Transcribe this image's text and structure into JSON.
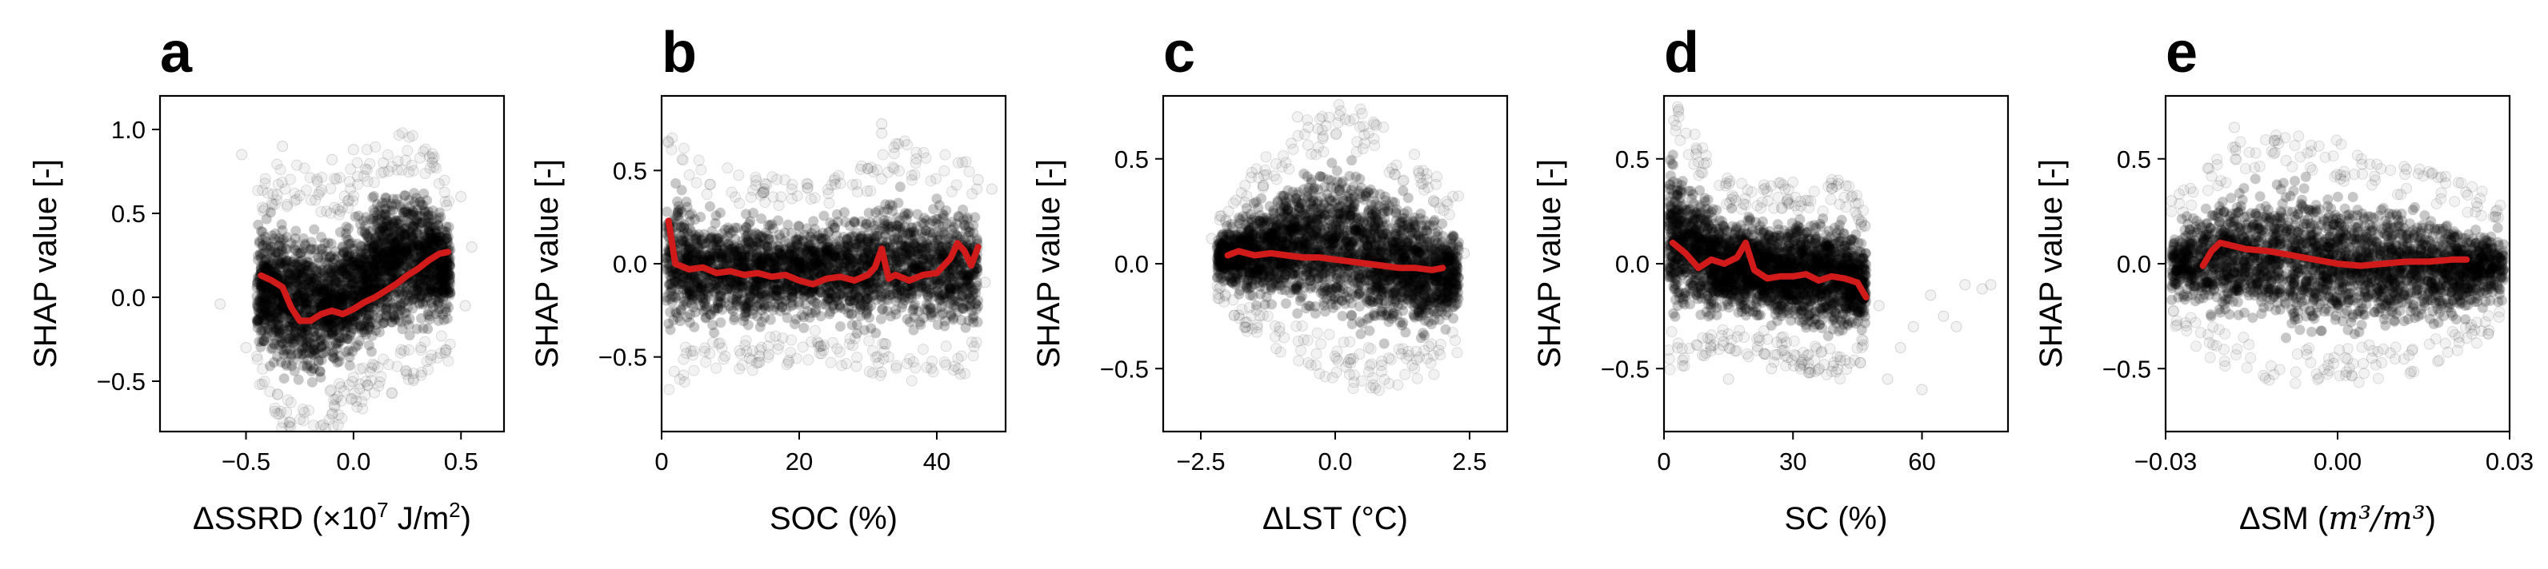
{
  "chart_data": [
    {
      "panel_label": "a",
      "type": "scatter",
      "xlabel": "ΔSSRD (×10",
      "xlabel_sup": "7",
      "xlabel_tail": " J/m",
      "xlabel_sup2": "2",
      "xlabel_end": ")",
      "ylabel": "SHAP value [-]",
      "xlim": [
        -0.9,
        0.7
      ],
      "ylim": [
        -0.8,
        1.2
      ],
      "xticks": [
        -0.5,
        0.0,
        0.5
      ],
      "xtick_labels": [
        "−0.5",
        "0.0",
        "0.5"
      ],
      "yticks": [
        -0.5,
        0.0,
        0.5,
        1.0
      ],
      "ytick_labels": [
        "−0.5",
        "0.0",
        "0.5",
        "1.0"
      ],
      "trend": [
        [
          -0.43,
          0.13
        ],
        [
          -0.38,
          0.1
        ],
        [
          -0.33,
          0.06
        ],
        [
          -0.29,
          -0.06
        ],
        [
          -0.25,
          -0.14
        ],
        [
          -0.2,
          -0.14
        ],
        [
          -0.15,
          -0.1
        ],
        [
          -0.1,
          -0.08
        ],
        [
          -0.05,
          -0.1
        ],
        [
          0.0,
          -0.07
        ],
        [
          0.05,
          -0.03
        ],
        [
          0.1,
          0.0
        ],
        [
          0.15,
          0.04
        ],
        [
          0.2,
          0.08
        ],
        [
          0.25,
          0.13
        ],
        [
          0.3,
          0.17
        ],
        [
          0.35,
          0.22
        ],
        [
          0.4,
          0.26
        ],
        [
          0.44,
          0.27
        ]
      ],
      "cloud": {
        "x0": -0.45,
        "x1": 0.45,
        "lower": [
          -0.35,
          -0.55,
          -0.6,
          -0.55,
          -0.45,
          -0.35,
          -0.3,
          -0.25,
          -0.2
        ],
        "upper": [
          0.5,
          0.55,
          0.5,
          0.45,
          0.55,
          0.7,
          0.75,
          0.7,
          0.5
        ],
        "seed": 11
      },
      "outliers": [
        [
          -0.62,
          -0.04
        ],
        [
          -0.52,
          0.85
        ],
        [
          0.5,
          0.6
        ],
        [
          0.55,
          0.3
        ],
        [
          -0.5,
          -0.3
        ],
        [
          0.52,
          -0.05
        ],
        [
          -0.33,
          0.9
        ],
        [
          0.0,
          0.88
        ],
        [
          -0.1,
          0.82
        ]
      ]
    },
    {
      "panel_label": "b",
      "type": "scatter",
      "xlabel": "SOC (%)",
      "ylabel": "SHAP value [-]",
      "xlim": [
        0,
        50
      ],
      "ylim": [
        -0.9,
        0.9
      ],
      "xticks": [
        0,
        20,
        40
      ],
      "xtick_labels": [
        "0",
        "20",
        "40"
      ],
      "yticks": [
        -0.5,
        0.0,
        0.5
      ],
      "ytick_labels": [
        "−0.5",
        "0.0",
        "0.5"
      ],
      "trend": [
        [
          1,
          0.23
        ],
        [
          2,
          0.0
        ],
        [
          4,
          -0.03
        ],
        [
          6,
          -0.02
        ],
        [
          8,
          -0.05
        ],
        [
          10,
          -0.04
        ],
        [
          12,
          -0.06
        ],
        [
          14,
          -0.05
        ],
        [
          16,
          -0.07
        ],
        [
          18,
          -0.06
        ],
        [
          20,
          -0.09
        ],
        [
          22,
          -0.11
        ],
        [
          24,
          -0.08
        ],
        [
          26,
          -0.07
        ],
        [
          28,
          -0.09
        ],
        [
          30,
          -0.06
        ],
        [
          31,
          -0.02
        ],
        [
          32,
          0.08
        ],
        [
          33,
          -0.08
        ],
        [
          34,
          -0.06
        ],
        [
          36,
          -0.09
        ],
        [
          38,
          -0.06
        ],
        [
          40,
          -0.05
        ],
        [
          42,
          0.03
        ],
        [
          43,
          0.11
        ],
        [
          44,
          0.07
        ],
        [
          45,
          -0.01
        ],
        [
          46,
          0.09
        ]
      ],
      "cloud": {
        "x0": 0.5,
        "x1": 46,
        "lower": [
          -0.45,
          -0.4,
          -0.4,
          -0.38,
          -0.35,
          -0.4,
          -0.42,
          -0.45,
          -0.4
        ],
        "upper": [
          0.55,
          0.35,
          0.32,
          0.3,
          0.3,
          0.35,
          0.45,
          0.4,
          0.35
        ],
        "seed": 23
      },
      "outliers": [
        [
          32,
          0.75
        ],
        [
          32,
          0.7
        ],
        [
          46,
          0.45
        ],
        [
          47,
          -0.1
        ],
        [
          48,
          0.4
        ],
        [
          1,
          0.65
        ],
        [
          33,
          -0.5
        ]
      ]
    },
    {
      "panel_label": "c",
      "type": "scatter",
      "xlabel": "ΔLST (°C)",
      "ylabel": "SHAP value [-]",
      "xlim": [
        -3.2,
        3.2
      ],
      "ylim": [
        -0.8,
        0.8
      ],
      "xticks": [
        -2.5,
        0.0,
        2.5
      ],
      "xtick_labels": [
        "−2.5",
        "0.0",
        "2.5"
      ],
      "yticks": [
        -0.5,
        0.0,
        0.5
      ],
      "ytick_labels": [
        "−0.5",
        "0.0",
        "0.5"
      ],
      "trend": [
        [
          -2.0,
          0.04
        ],
        [
          -1.8,
          0.06
        ],
        [
          -1.5,
          0.04
        ],
        [
          -1.2,
          0.05
        ],
        [
          -0.9,
          0.04
        ],
        [
          -0.6,
          0.03
        ],
        [
          -0.3,
          0.03
        ],
        [
          0.0,
          0.02
        ],
        [
          0.3,
          0.01
        ],
        [
          0.6,
          0.0
        ],
        [
          0.9,
          -0.01
        ],
        [
          1.2,
          -0.02
        ],
        [
          1.5,
          -0.02
        ],
        [
          1.8,
          -0.03
        ],
        [
          2.0,
          -0.02
        ]
      ],
      "cloud": {
        "x0": -2.2,
        "x1": 2.3,
        "lower": [
          -0.1,
          -0.2,
          -0.25,
          -0.3,
          -0.35,
          -0.4,
          -0.4,
          -0.38,
          -0.3
        ],
        "upper": [
          0.15,
          0.3,
          0.4,
          0.5,
          0.55,
          0.5,
          0.4,
          0.3,
          0.2
        ],
        "seed": 37
      },
      "outliers": [
        [
          -0.7,
          0.7
        ],
        [
          -0.5,
          0.65
        ],
        [
          2.4,
          0.05
        ],
        [
          -2.3,
          0.12
        ],
        [
          1.0,
          -0.45
        ]
      ]
    },
    {
      "panel_label": "d",
      "type": "scatter",
      "xlabel": "SC (%)",
      "ylabel": "SHAP value [-]",
      "xlim": [
        0,
        80
      ],
      "ylim": [
        -0.8,
        0.8
      ],
      "xticks": [
        0,
        30,
        60
      ],
      "xtick_labels": [
        "0",
        "30",
        "60"
      ],
      "yticks": [
        -0.5,
        0.0,
        0.5
      ],
      "ytick_labels": [
        "−0.5",
        "0.0",
        "0.5"
      ],
      "trend": [
        [
          2,
          0.1
        ],
        [
          5,
          0.05
        ],
        [
          8,
          -0.02
        ],
        [
          11,
          0.02
        ],
        [
          14,
          0.0
        ],
        [
          17,
          0.03
        ],
        [
          19,
          0.1
        ],
        [
          21,
          -0.03
        ],
        [
          24,
          -0.07
        ],
        [
          27,
          -0.06
        ],
        [
          30,
          -0.06
        ],
        [
          33,
          -0.05
        ],
        [
          36,
          -0.08
        ],
        [
          39,
          -0.06
        ],
        [
          42,
          -0.07
        ],
        [
          45,
          -0.09
        ],
        [
          47,
          -0.16
        ]
      ],
      "cloud": {
        "x0": 1,
        "x1": 47,
        "lower": [
          -0.3,
          -0.3,
          -0.28,
          -0.3,
          -0.32,
          -0.35,
          -0.38,
          -0.4,
          -0.35
        ],
        "upper": [
          0.6,
          0.45,
          0.3,
          0.25,
          0.25,
          0.25,
          0.25,
          0.25,
          0.15
        ],
        "seed": 51
      },
      "outliers": [
        [
          50,
          -0.2
        ],
        [
          55,
          -0.4
        ],
        [
          58,
          -0.3
        ],
        [
          62,
          -0.15
        ],
        [
          65,
          -0.25
        ],
        [
          70,
          -0.1
        ],
        [
          74,
          -0.12
        ],
        [
          68,
          -0.3
        ],
        [
          52,
          -0.55
        ],
        [
          15,
          -0.55
        ],
        [
          60,
          -0.6
        ],
        [
          25,
          -0.5
        ],
        [
          76,
          -0.1
        ]
      ]
    },
    {
      "panel_label": "e",
      "type": "scatter",
      "xlabel": "ΔSM (",
      "xlabel_math": "m³/m³",
      "xlabel_end": ")",
      "ylabel": "SHAP value [-]",
      "xlim": [
        -0.03,
        0.03
      ],
      "ylim": [
        -0.8,
        0.8
      ],
      "xticks": [
        -0.03,
        0.0,
        0.03
      ],
      "xtick_labels": [
        "−0.03",
        "0.00",
        "0.03"
      ],
      "yticks": [
        -0.5,
        0.0,
        0.5
      ],
      "ytick_labels": [
        "−0.5",
        "0.0",
        "0.5"
      ],
      "trend": [
        [
          -0.0235,
          -0.01
        ],
        [
          -0.022,
          0.06
        ],
        [
          -0.0205,
          0.1
        ],
        [
          -0.019,
          0.09
        ],
        [
          -0.016,
          0.07
        ],
        [
          -0.012,
          0.06
        ],
        [
          -0.008,
          0.04
        ],
        [
          -0.004,
          0.02
        ],
        [
          0.0,
          0.0
        ],
        [
          0.004,
          -0.01
        ],
        [
          0.008,
          0.0
        ],
        [
          0.012,
          0.01
        ],
        [
          0.016,
          0.01
        ],
        [
          0.02,
          0.02
        ],
        [
          0.0225,
          0.02
        ]
      ],
      "cloud": {
        "x0": -0.029,
        "x1": 0.029,
        "lower": [
          -0.2,
          -0.3,
          -0.35,
          -0.38,
          -0.4,
          -0.38,
          -0.35,
          -0.3,
          -0.2
        ],
        "upper": [
          0.2,
          0.35,
          0.45,
          0.45,
          0.4,
          0.35,
          0.3,
          0.25,
          0.2
        ],
        "seed": 73
      },
      "outliers": [
        [
          -0.018,
          0.65
        ],
        [
          0.012,
          0.45
        ],
        [
          0.028,
          0.22
        ],
        [
          -0.029,
          0.3
        ],
        [
          0.006,
          -0.45
        ]
      ]
    }
  ]
}
